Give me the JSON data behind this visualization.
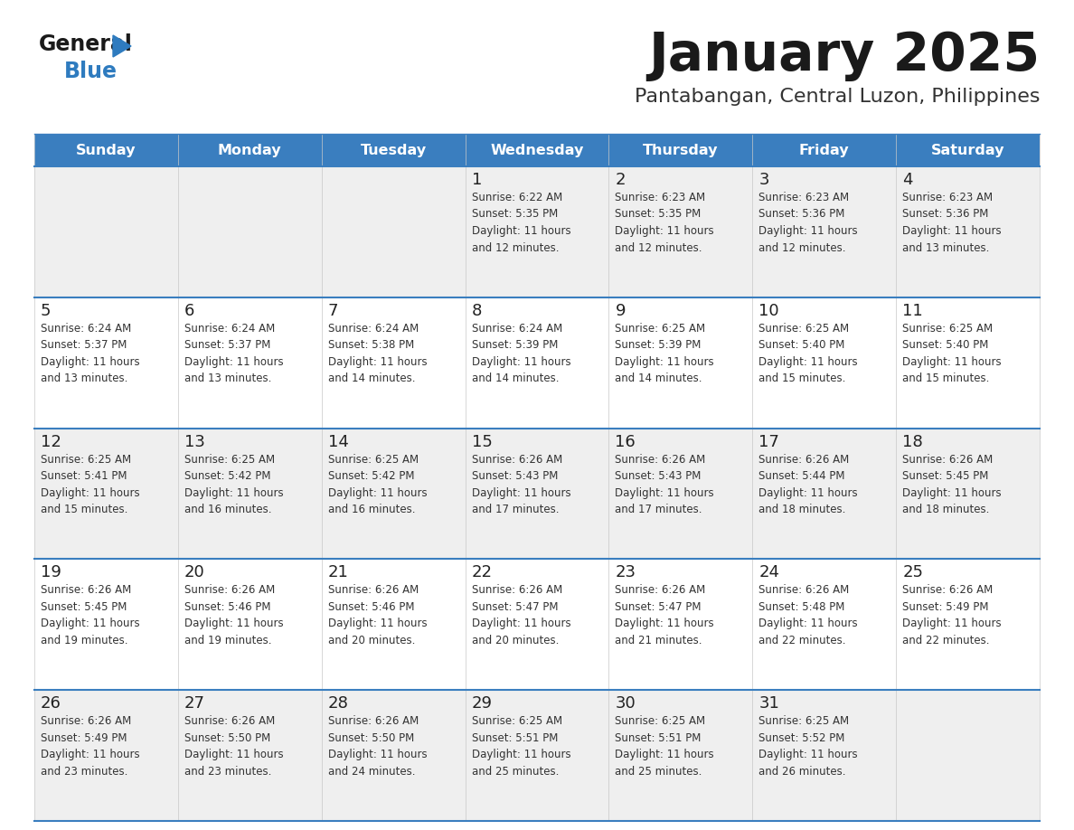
{
  "title": "January 2025",
  "subtitle": "Pantabangan, Central Luzon, Philippines",
  "days_of_week": [
    "Sunday",
    "Monday",
    "Tuesday",
    "Wednesday",
    "Thursday",
    "Friday",
    "Saturday"
  ],
  "header_bg": "#3a7ebf",
  "header_text": "#ffffff",
  "cell_bg_even": "#efefef",
  "cell_bg_odd": "#ffffff",
  "cell_border": "#3a7ebf",
  "day_num_color": "#222222",
  "info_color": "#333333",
  "title_color": "#1a1a1a",
  "subtitle_color": "#333333",
  "logo_general_color": "#1a1a1a",
  "logo_blue_color": "#2e7bbf",
  "calendar_data": [
    {
      "day": 1,
      "col": 3,
      "row": 0,
      "sunrise": "6:22 AM",
      "sunset": "5:35 PM",
      "daylight_hours": 11,
      "daylight_minutes": 12
    },
    {
      "day": 2,
      "col": 4,
      "row": 0,
      "sunrise": "6:23 AM",
      "sunset": "5:35 PM",
      "daylight_hours": 11,
      "daylight_minutes": 12
    },
    {
      "day": 3,
      "col": 5,
      "row": 0,
      "sunrise": "6:23 AM",
      "sunset": "5:36 PM",
      "daylight_hours": 11,
      "daylight_minutes": 12
    },
    {
      "day": 4,
      "col": 6,
      "row": 0,
      "sunrise": "6:23 AM",
      "sunset": "5:36 PM",
      "daylight_hours": 11,
      "daylight_minutes": 13
    },
    {
      "day": 5,
      "col": 0,
      "row": 1,
      "sunrise": "6:24 AM",
      "sunset": "5:37 PM",
      "daylight_hours": 11,
      "daylight_minutes": 13
    },
    {
      "day": 6,
      "col": 1,
      "row": 1,
      "sunrise": "6:24 AM",
      "sunset": "5:37 PM",
      "daylight_hours": 11,
      "daylight_minutes": 13
    },
    {
      "day": 7,
      "col": 2,
      "row": 1,
      "sunrise": "6:24 AM",
      "sunset": "5:38 PM",
      "daylight_hours": 11,
      "daylight_minutes": 14
    },
    {
      "day": 8,
      "col": 3,
      "row": 1,
      "sunrise": "6:24 AM",
      "sunset": "5:39 PM",
      "daylight_hours": 11,
      "daylight_minutes": 14
    },
    {
      "day": 9,
      "col": 4,
      "row": 1,
      "sunrise": "6:25 AM",
      "sunset": "5:39 PM",
      "daylight_hours": 11,
      "daylight_minutes": 14
    },
    {
      "day": 10,
      "col": 5,
      "row": 1,
      "sunrise": "6:25 AM",
      "sunset": "5:40 PM",
      "daylight_hours": 11,
      "daylight_minutes": 15
    },
    {
      "day": 11,
      "col": 6,
      "row": 1,
      "sunrise": "6:25 AM",
      "sunset": "5:40 PM",
      "daylight_hours": 11,
      "daylight_minutes": 15
    },
    {
      "day": 12,
      "col": 0,
      "row": 2,
      "sunrise": "6:25 AM",
      "sunset": "5:41 PM",
      "daylight_hours": 11,
      "daylight_minutes": 15
    },
    {
      "day": 13,
      "col": 1,
      "row": 2,
      "sunrise": "6:25 AM",
      "sunset": "5:42 PM",
      "daylight_hours": 11,
      "daylight_minutes": 16
    },
    {
      "day": 14,
      "col": 2,
      "row": 2,
      "sunrise": "6:25 AM",
      "sunset": "5:42 PM",
      "daylight_hours": 11,
      "daylight_minutes": 16
    },
    {
      "day": 15,
      "col": 3,
      "row": 2,
      "sunrise": "6:26 AM",
      "sunset": "5:43 PM",
      "daylight_hours": 11,
      "daylight_minutes": 17
    },
    {
      "day": 16,
      "col": 4,
      "row": 2,
      "sunrise": "6:26 AM",
      "sunset": "5:43 PM",
      "daylight_hours": 11,
      "daylight_minutes": 17
    },
    {
      "day": 17,
      "col": 5,
      "row": 2,
      "sunrise": "6:26 AM",
      "sunset": "5:44 PM",
      "daylight_hours": 11,
      "daylight_minutes": 18
    },
    {
      "day": 18,
      "col": 6,
      "row": 2,
      "sunrise": "6:26 AM",
      "sunset": "5:45 PM",
      "daylight_hours": 11,
      "daylight_minutes": 18
    },
    {
      "day": 19,
      "col": 0,
      "row": 3,
      "sunrise": "6:26 AM",
      "sunset": "5:45 PM",
      "daylight_hours": 11,
      "daylight_minutes": 19
    },
    {
      "day": 20,
      "col": 1,
      "row": 3,
      "sunrise": "6:26 AM",
      "sunset": "5:46 PM",
      "daylight_hours": 11,
      "daylight_minutes": 19
    },
    {
      "day": 21,
      "col": 2,
      "row": 3,
      "sunrise": "6:26 AM",
      "sunset": "5:46 PM",
      "daylight_hours": 11,
      "daylight_minutes": 20
    },
    {
      "day": 22,
      "col": 3,
      "row": 3,
      "sunrise": "6:26 AM",
      "sunset": "5:47 PM",
      "daylight_hours": 11,
      "daylight_minutes": 20
    },
    {
      "day": 23,
      "col": 4,
      "row": 3,
      "sunrise": "6:26 AM",
      "sunset": "5:47 PM",
      "daylight_hours": 11,
      "daylight_minutes": 21
    },
    {
      "day": 24,
      "col": 5,
      "row": 3,
      "sunrise": "6:26 AM",
      "sunset": "5:48 PM",
      "daylight_hours": 11,
      "daylight_minutes": 22
    },
    {
      "day": 25,
      "col": 6,
      "row": 3,
      "sunrise": "6:26 AM",
      "sunset": "5:49 PM",
      "daylight_hours": 11,
      "daylight_minutes": 22
    },
    {
      "day": 26,
      "col": 0,
      "row": 4,
      "sunrise": "6:26 AM",
      "sunset": "5:49 PM",
      "daylight_hours": 11,
      "daylight_minutes": 23
    },
    {
      "day": 27,
      "col": 1,
      "row": 4,
      "sunrise": "6:26 AM",
      "sunset": "5:50 PM",
      "daylight_hours": 11,
      "daylight_minutes": 23
    },
    {
      "day": 28,
      "col": 2,
      "row": 4,
      "sunrise": "6:26 AM",
      "sunset": "5:50 PM",
      "daylight_hours": 11,
      "daylight_minutes": 24
    },
    {
      "day": 29,
      "col": 3,
      "row": 4,
      "sunrise": "6:25 AM",
      "sunset": "5:51 PM",
      "daylight_hours": 11,
      "daylight_minutes": 25
    },
    {
      "day": 30,
      "col": 4,
      "row": 4,
      "sunrise": "6:25 AM",
      "sunset": "5:51 PM",
      "daylight_hours": 11,
      "daylight_minutes": 25
    },
    {
      "day": 31,
      "col": 5,
      "row": 4,
      "sunrise": "6:25 AM",
      "sunset": "5:52 PM",
      "daylight_hours": 11,
      "daylight_minutes": 26
    }
  ]
}
